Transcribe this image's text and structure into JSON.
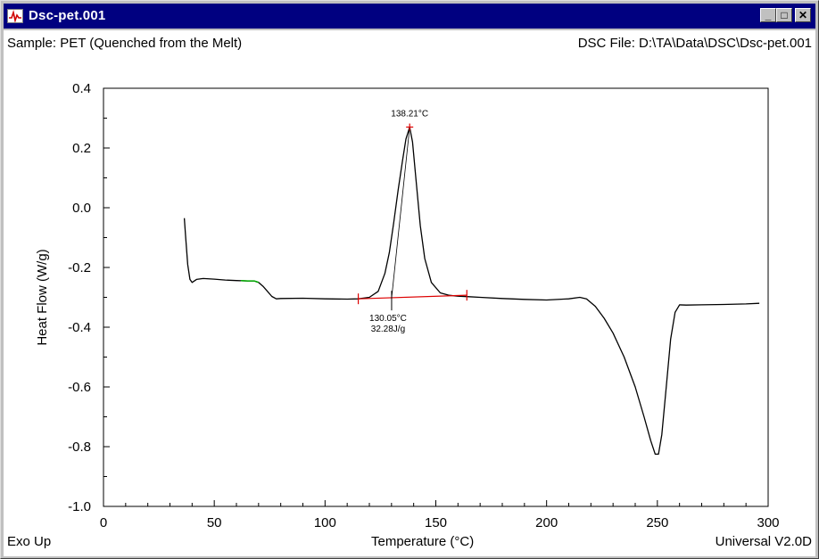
{
  "window": {
    "title": "Dsc-pet.001",
    "buttons": {
      "minimize": "_",
      "maximize": "□",
      "close": "✕"
    }
  },
  "header": {
    "sample": "Sample: PET (Quenched from the Melt)",
    "file": "DSC File: D:\\TA\\Data\\DSC\\Dsc-pet.001"
  },
  "footer": {
    "left": "Exo Up",
    "center": "Temperature (°C)",
    "right": "Universal V2.0D"
  },
  "chart_data": {
    "type": "line",
    "xlabel": "Temperature (°C)",
    "ylabel": "Heat Flow (W/g)",
    "xlim": [
      0,
      300
    ],
    "ylim": [
      -1.0,
      0.4
    ],
    "x_ticks": [
      0,
      50,
      100,
      150,
      200,
      250,
      300
    ],
    "y_ticks": [
      0.4,
      0.2,
      0.0,
      -0.2,
      -0.4,
      -0.6,
      -0.8,
      -1.0
    ],
    "y_tick_labels": [
      "0.4",
      "0.2",
      "0.0",
      "-0.2",
      "-0.4",
      "-0.6",
      "-0.8",
      "-1.0"
    ],
    "grid": false,
    "series": [
      {
        "color": "#000000",
        "x": [
          36.5,
          37,
          38,
          39,
          40,
          42,
          45,
          50,
          55,
          60,
          65,
          68,
          70,
          72,
          74,
          76,
          78,
          80,
          90,
          100,
          110,
          115,
          120,
          124,
          127,
          129,
          131,
          133,
          135,
          136.5,
          138.2,
          139.5,
          141,
          143,
          145,
          148,
          152,
          156,
          160,
          165,
          170,
          180,
          190,
          200,
          210,
          215,
          218,
          222,
          226,
          230,
          235,
          240,
          244,
          247,
          249,
          250.5,
          252,
          254,
          256,
          258,
          260,
          263,
          270,
          280,
          290,
          296
        ],
        "y": [
          -0.035,
          -0.09,
          -0.19,
          -0.24,
          -0.25,
          -0.24,
          -0.237,
          -0.239,
          -0.242,
          -0.244,
          -0.245,
          -0.245,
          -0.25,
          -0.263,
          -0.28,
          -0.297,
          -0.305,
          -0.304,
          -0.303,
          -0.305,
          -0.306,
          -0.305,
          -0.3,
          -0.28,
          -0.22,
          -0.15,
          -0.05,
          0.06,
          0.16,
          0.23,
          0.27,
          0.22,
          0.1,
          -0.06,
          -0.17,
          -0.25,
          -0.285,
          -0.293,
          -0.296,
          -0.298,
          -0.3,
          -0.304,
          -0.307,
          -0.309,
          -0.305,
          -0.3,
          -0.305,
          -0.33,
          -0.37,
          -0.42,
          -0.5,
          -0.6,
          -0.7,
          -0.78,
          -0.825,
          -0.825,
          -0.76,
          -0.6,
          -0.44,
          -0.35,
          -0.325,
          -0.326,
          -0.325,
          -0.324,
          -0.322,
          -0.32
        ]
      }
    ],
    "highlight": {
      "color": "#00aa00",
      "x": [
        62,
        65,
        68,
        70
      ],
      "y": [
        -0.244,
        -0.245,
        -0.245,
        -0.25
      ]
    },
    "baseline": {
      "color": "#dd0000",
      "x": [
        115,
        164
      ],
      "y": [
        -0.305,
        -0.293
      ]
    },
    "peak_label": "138.21°C",
    "peak_marker": {
      "x": 138.2,
      "y": 0.27,
      "color": "#dd0000"
    },
    "onset_marker": {
      "x": 130.05,
      "y": -0.302
    },
    "integration_labels": [
      "130.05°C",
      "32.28J/g"
    ]
  }
}
